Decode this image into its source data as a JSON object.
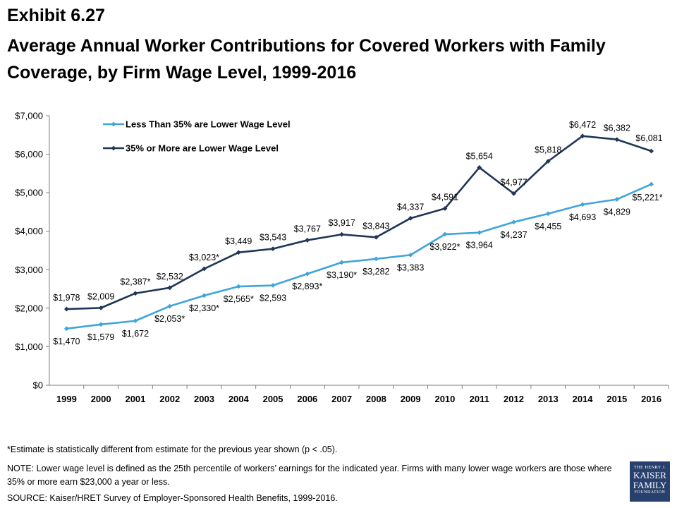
{
  "exhibit": "Exhibit 6.27",
  "title": "Average Annual Worker Contributions for Covered Workers with Family Coverage, by Firm Wage Level, 1999-2016",
  "footnotes": {
    "asterisk": "*Estimate is statistically different from estimate for the previous year shown (p < .05).",
    "note": "NOTE:  Lower wage level is defined as the 25th percentile of workers’ earnings for the indicated year. Firms with many lower wage workers are those where 35% or more earn $23,000 a year or less.",
    "source": "SOURCE:  Kaiser/HRET Survey of Employer-Sponsored Health Benefits, 1999-2016."
  },
  "logo": {
    "line1": "THE HENRY J.",
    "line2": "KAISER",
    "line3": "FAMILY",
    "line4": "FOUNDATION"
  },
  "colors": {
    "light": "#3fa4dc",
    "dark": "#1f3657"
  },
  "chart_data": {
    "type": "line",
    "categories": [
      "1999",
      "2000",
      "2001",
      "2002",
      "2003",
      "2004",
      "2005",
      "2006",
      "2007",
      "2008",
      "2009",
      "2010",
      "2011",
      "2012",
      "2013",
      "2014",
      "2015",
      "2016"
    ],
    "ylim": [
      0,
      7000
    ],
    "yticks": [
      0,
      1000,
      2000,
      3000,
      4000,
      5000,
      6000,
      7000
    ],
    "ytick_labels": [
      "$0",
      "$1,000",
      "$2,000",
      "$3,000",
      "$4,000",
      "$5,000",
      "$6,000",
      "$7,000"
    ],
    "legend_position": "top-left",
    "grid": false,
    "series": [
      {
        "name": "Less Than 35% are Lower Wage Level",
        "color": "#3fa4dc",
        "values": [
          1470,
          1579,
          1672,
          2053,
          2330,
          2565,
          2593,
          2893,
          3190,
          3282,
          3383,
          3922,
          3964,
          4237,
          4455,
          4693,
          4829,
          5221
        ],
        "labels": [
          "$1,470",
          "$1,579",
          "$1,672",
          "$2,053*",
          "$2,330*",
          "$2,565*",
          "$2,593",
          "$2,893*",
          "$3,190*",
          "$3,282",
          "$3,383",
          "$3,922*",
          "$3,964",
          "$4,237",
          "$4,455",
          "$4,693",
          "$4,829",
          "$5,221*"
        ]
      },
      {
        "name": "35% or More are Lower Wage Level",
        "color": "#1f3657",
        "values": [
          1978,
          2009,
          2387,
          2532,
          3023,
          3449,
          3543,
          3767,
          3917,
          3843,
          4337,
          4591,
          5654,
          4977,
          5818,
          6472,
          6382,
          6081
        ],
        "labels": [
          "$1,978",
          "$2,009",
          "$2,387*",
          "$2,532",
          "$3,023*",
          "$3,449",
          "$3,543",
          "$3,767",
          "$3,917",
          "$3,843",
          "$4,337",
          "$4,591",
          "$5,654",
          "$4,977",
          "$5,818",
          "$6,472",
          "$6,382",
          "$6,081"
        ]
      }
    ]
  }
}
